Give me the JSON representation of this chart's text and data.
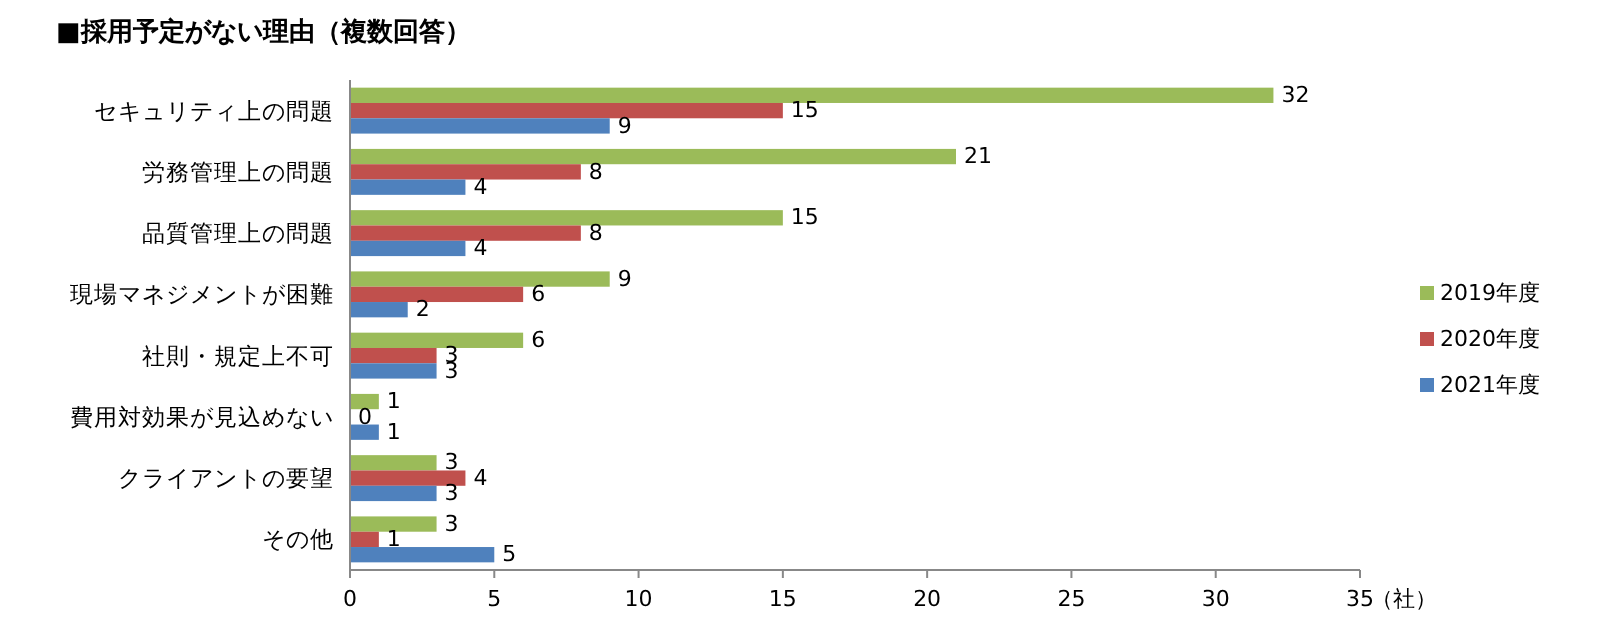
{
  "chart_data": {
    "type": "bar",
    "orientation": "horizontal",
    "title": "■採用予定がない理由（複数回答）",
    "xlabel": "（社）",
    "categories": [
      "セキュリティ上の問題",
      "労務管理上の問題",
      "品質管理上の問題",
      "現場マネジメントが困難",
      "社則・規定上不可",
      "費用対効果が見込めない",
      "クライアントの要望",
      "その他"
    ],
    "series": [
      {
        "name": "2019年度",
        "color": "#9bbb59",
        "values": [
          32,
          21,
          15,
          9,
          6,
          1,
          3,
          3
        ]
      },
      {
        "name": "2020年度",
        "color": "#c0504d",
        "values": [
          15,
          8,
          8,
          6,
          3,
          0,
          4,
          1
        ]
      },
      {
        "name": "2021年度",
        "color": "#4f81bd",
        "values": [
          9,
          4,
          4,
          2,
          3,
          1,
          3,
          5
        ]
      }
    ],
    "xlim": [
      0,
      35
    ],
    "xticks": [
      0,
      5,
      10,
      15,
      20,
      25,
      30,
      35
    ],
    "data_labels": true,
    "legend": "right"
  }
}
